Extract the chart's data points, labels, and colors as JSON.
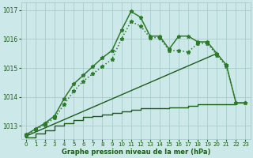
{
  "title": "Graphe pression niveau de la mer (hPa)",
  "bg_color": "#cde8e8",
  "grid_color": "#a8cccc",
  "dark_green": "#1a5c1a",
  "med_green": "#2d7a2d",
  "xlim": [
    -0.5,
    23.5
  ],
  "ylim": [
    1012.55,
    1017.25
  ],
  "yticks": [
    1013,
    1014,
    1015,
    1016,
    1017
  ],
  "xticks": [
    0,
    1,
    2,
    3,
    4,
    5,
    6,
    7,
    8,
    9,
    10,
    11,
    12,
    13,
    14,
    15,
    16,
    17,
    18,
    19,
    20,
    21,
    22,
    23
  ],
  "step_line": {
    "x": [
      0,
      1,
      2,
      3,
      4,
      5,
      6,
      7,
      8,
      9,
      10,
      11,
      12,
      13,
      14,
      15,
      16,
      17,
      18,
      19,
      20,
      21,
      22,
      23
    ],
    "y": [
      1012.6,
      1012.75,
      1012.85,
      1013.0,
      1013.1,
      1013.2,
      1013.3,
      1013.35,
      1013.4,
      1013.45,
      1013.5,
      1013.55,
      1013.6,
      1013.6,
      1013.6,
      1013.65,
      1013.65,
      1013.7,
      1013.75,
      1013.75,
      1013.75,
      1013.75,
      1013.8,
      1013.8
    ],
    "color": "#1a5c1a",
    "lw": 1.0
  },
  "diag_line": {
    "x": [
      0,
      20
    ],
    "y": [
      1012.65,
      1015.5
    ],
    "color": "#1a5c1a",
    "lw": 1.0
  },
  "line_dotted": {
    "x": [
      0,
      1,
      2,
      3,
      4,
      5,
      6,
      7,
      8,
      9,
      10,
      11,
      12,
      13,
      14,
      15,
      16,
      17,
      18,
      19,
      20,
      21,
      22,
      23
    ],
    "y": [
      1012.65,
      1012.88,
      1013.05,
      1013.28,
      1013.75,
      1014.2,
      1014.55,
      1014.8,
      1015.05,
      1015.3,
      1016.0,
      1016.6,
      1016.45,
      1016.05,
      1016.05,
      1015.6,
      1015.6,
      1015.55,
      1015.85,
      1015.85,
      1015.45,
      1015.05,
      1013.8,
      1013.8
    ],
    "color": "#2d7a2d",
    "lw": 1.1,
    "marker": "*",
    "ms": 3.5,
    "ls": "dotted"
  },
  "line_solid": {
    "x": [
      0,
      1,
      2,
      3,
      4,
      5,
      6,
      7,
      8,
      9,
      10,
      11,
      12,
      13,
      14,
      15,
      16,
      17,
      18,
      19,
      20,
      21,
      22,
      23
    ],
    "y": [
      1012.7,
      1012.9,
      1013.1,
      1013.35,
      1013.95,
      1014.45,
      1014.75,
      1015.05,
      1015.35,
      1015.6,
      1016.3,
      1016.95,
      1016.75,
      1016.1,
      1016.1,
      1015.65,
      1016.1,
      1016.1,
      1015.9,
      1015.9,
      1015.5,
      1015.1,
      1013.8,
      1013.8
    ],
    "color": "#2d7a2d",
    "lw": 1.1,
    "marker": "*",
    "ms": 3.5,
    "ls": "solid"
  }
}
